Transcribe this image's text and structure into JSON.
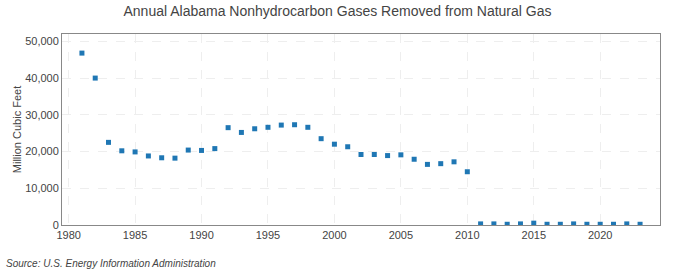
{
  "chart_data": {
    "type": "scatter",
    "title": "Annual Alabama Nonhydrocarbon Gases Removed from Natural Gas",
    "ylabel": "Million Cubic Feet",
    "annotations": [
      "Source: U.S. Energy Information Administration"
    ],
    "marker": "square",
    "grid": true,
    "x": [
      1981,
      1982,
      1983,
      1984,
      1985,
      1986,
      1987,
      1988,
      1989,
      1990,
      1991,
      1992,
      1993,
      1994,
      1995,
      1996,
      1997,
      1998,
      1999,
      2000,
      2001,
      2002,
      2003,
      2004,
      2005,
      2006,
      2007,
      2008,
      2009,
      2010,
      2011,
      2012,
      2013,
      2014,
      2015,
      2016,
      2017,
      2018,
      2019,
      2020,
      2021,
      2022,
      2023
    ],
    "values": [
      46800,
      40000,
      22500,
      20200,
      19900,
      18800,
      18300,
      18200,
      20400,
      20300,
      20800,
      26500,
      25200,
      26200,
      26600,
      27200,
      27300,
      26600,
      23500,
      22000,
      21300,
      19200,
      19200,
      18900,
      19100,
      17900,
      16500,
      16700,
      17200,
      14500,
      300,
      300,
      200,
      300,
      500,
      200,
      200,
      300,
      200,
      200,
      200,
      300,
      200
    ],
    "xlim": [
      1979.5,
      2024.5
    ],
    "ylim": [
      0,
      52000
    ],
    "xticks": [
      1980,
      1985,
      1990,
      1995,
      2000,
      2005,
      2010,
      2015,
      2020
    ],
    "yticks": [
      0,
      {
        "value": 10000,
        "label": "10,000"
      },
      {
        "value": 20000,
        "label": "20,000"
      },
      {
        "value": 30000,
        "label": "30,000"
      },
      {
        "value": 40000,
        "label": "40,000"
      },
      {
        "value": 50000,
        "label": "50,000"
      }
    ]
  }
}
